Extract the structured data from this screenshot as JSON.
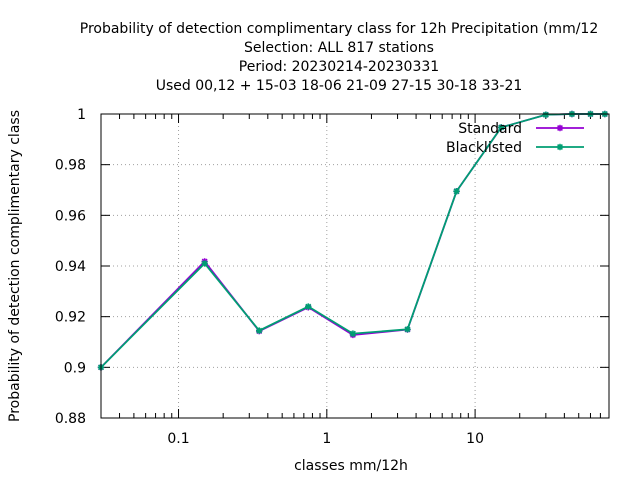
{
  "chart_data": {
    "type": "line",
    "title_lines": [
      "Probability of detection complimentary class  for 12h Precipitation (mm/12",
      "Selection: ALL    817 stations",
      "Period: 20230214-20230331",
      "Used  00,12  + 15-03 18-06 21-09 27-15 30-18 33-21"
    ],
    "xlabel": "classes mm/12h",
    "ylabel": "Probability of detection complimentary class",
    "xscale": "log",
    "xlim": [
      0.03,
      80
    ],
    "ylim": [
      0.88,
      1.0
    ],
    "x_ticks": [
      0.1,
      1,
      10
    ],
    "x_tick_labels": [
      "0.1",
      "1",
      "10"
    ],
    "y_ticks": [
      0.88,
      0.9,
      0.92,
      0.94,
      0.96,
      0.98,
      1.0
    ],
    "y_tick_labels": [
      "0.88",
      "0.9",
      "0.92",
      "0.94",
      "0.96",
      "0.98",
      "1"
    ],
    "grid": true,
    "legend_position": "top-right",
    "x": [
      0.03,
      0.15,
      0.35,
      0.75,
      1.5,
      3.5,
      7.5,
      15,
      30,
      45,
      60,
      75
    ],
    "series": [
      {
        "name": "Standard",
        "color": "#9400d3",
        "values": [
          0.9,
          0.9418,
          0.9143,
          0.9237,
          0.9128,
          0.9149,
          0.9695,
          0.9947,
          0.9997,
          1.0,
          1.0,
          1.0
        ]
      },
      {
        "name": "Blacklisted",
        "color": "#009e73",
        "values": [
          0.9,
          0.941,
          0.9145,
          0.924,
          0.9133,
          0.915,
          0.9695,
          0.9947,
          0.9997,
          1.0,
          1.0,
          1.0
        ]
      }
    ]
  }
}
